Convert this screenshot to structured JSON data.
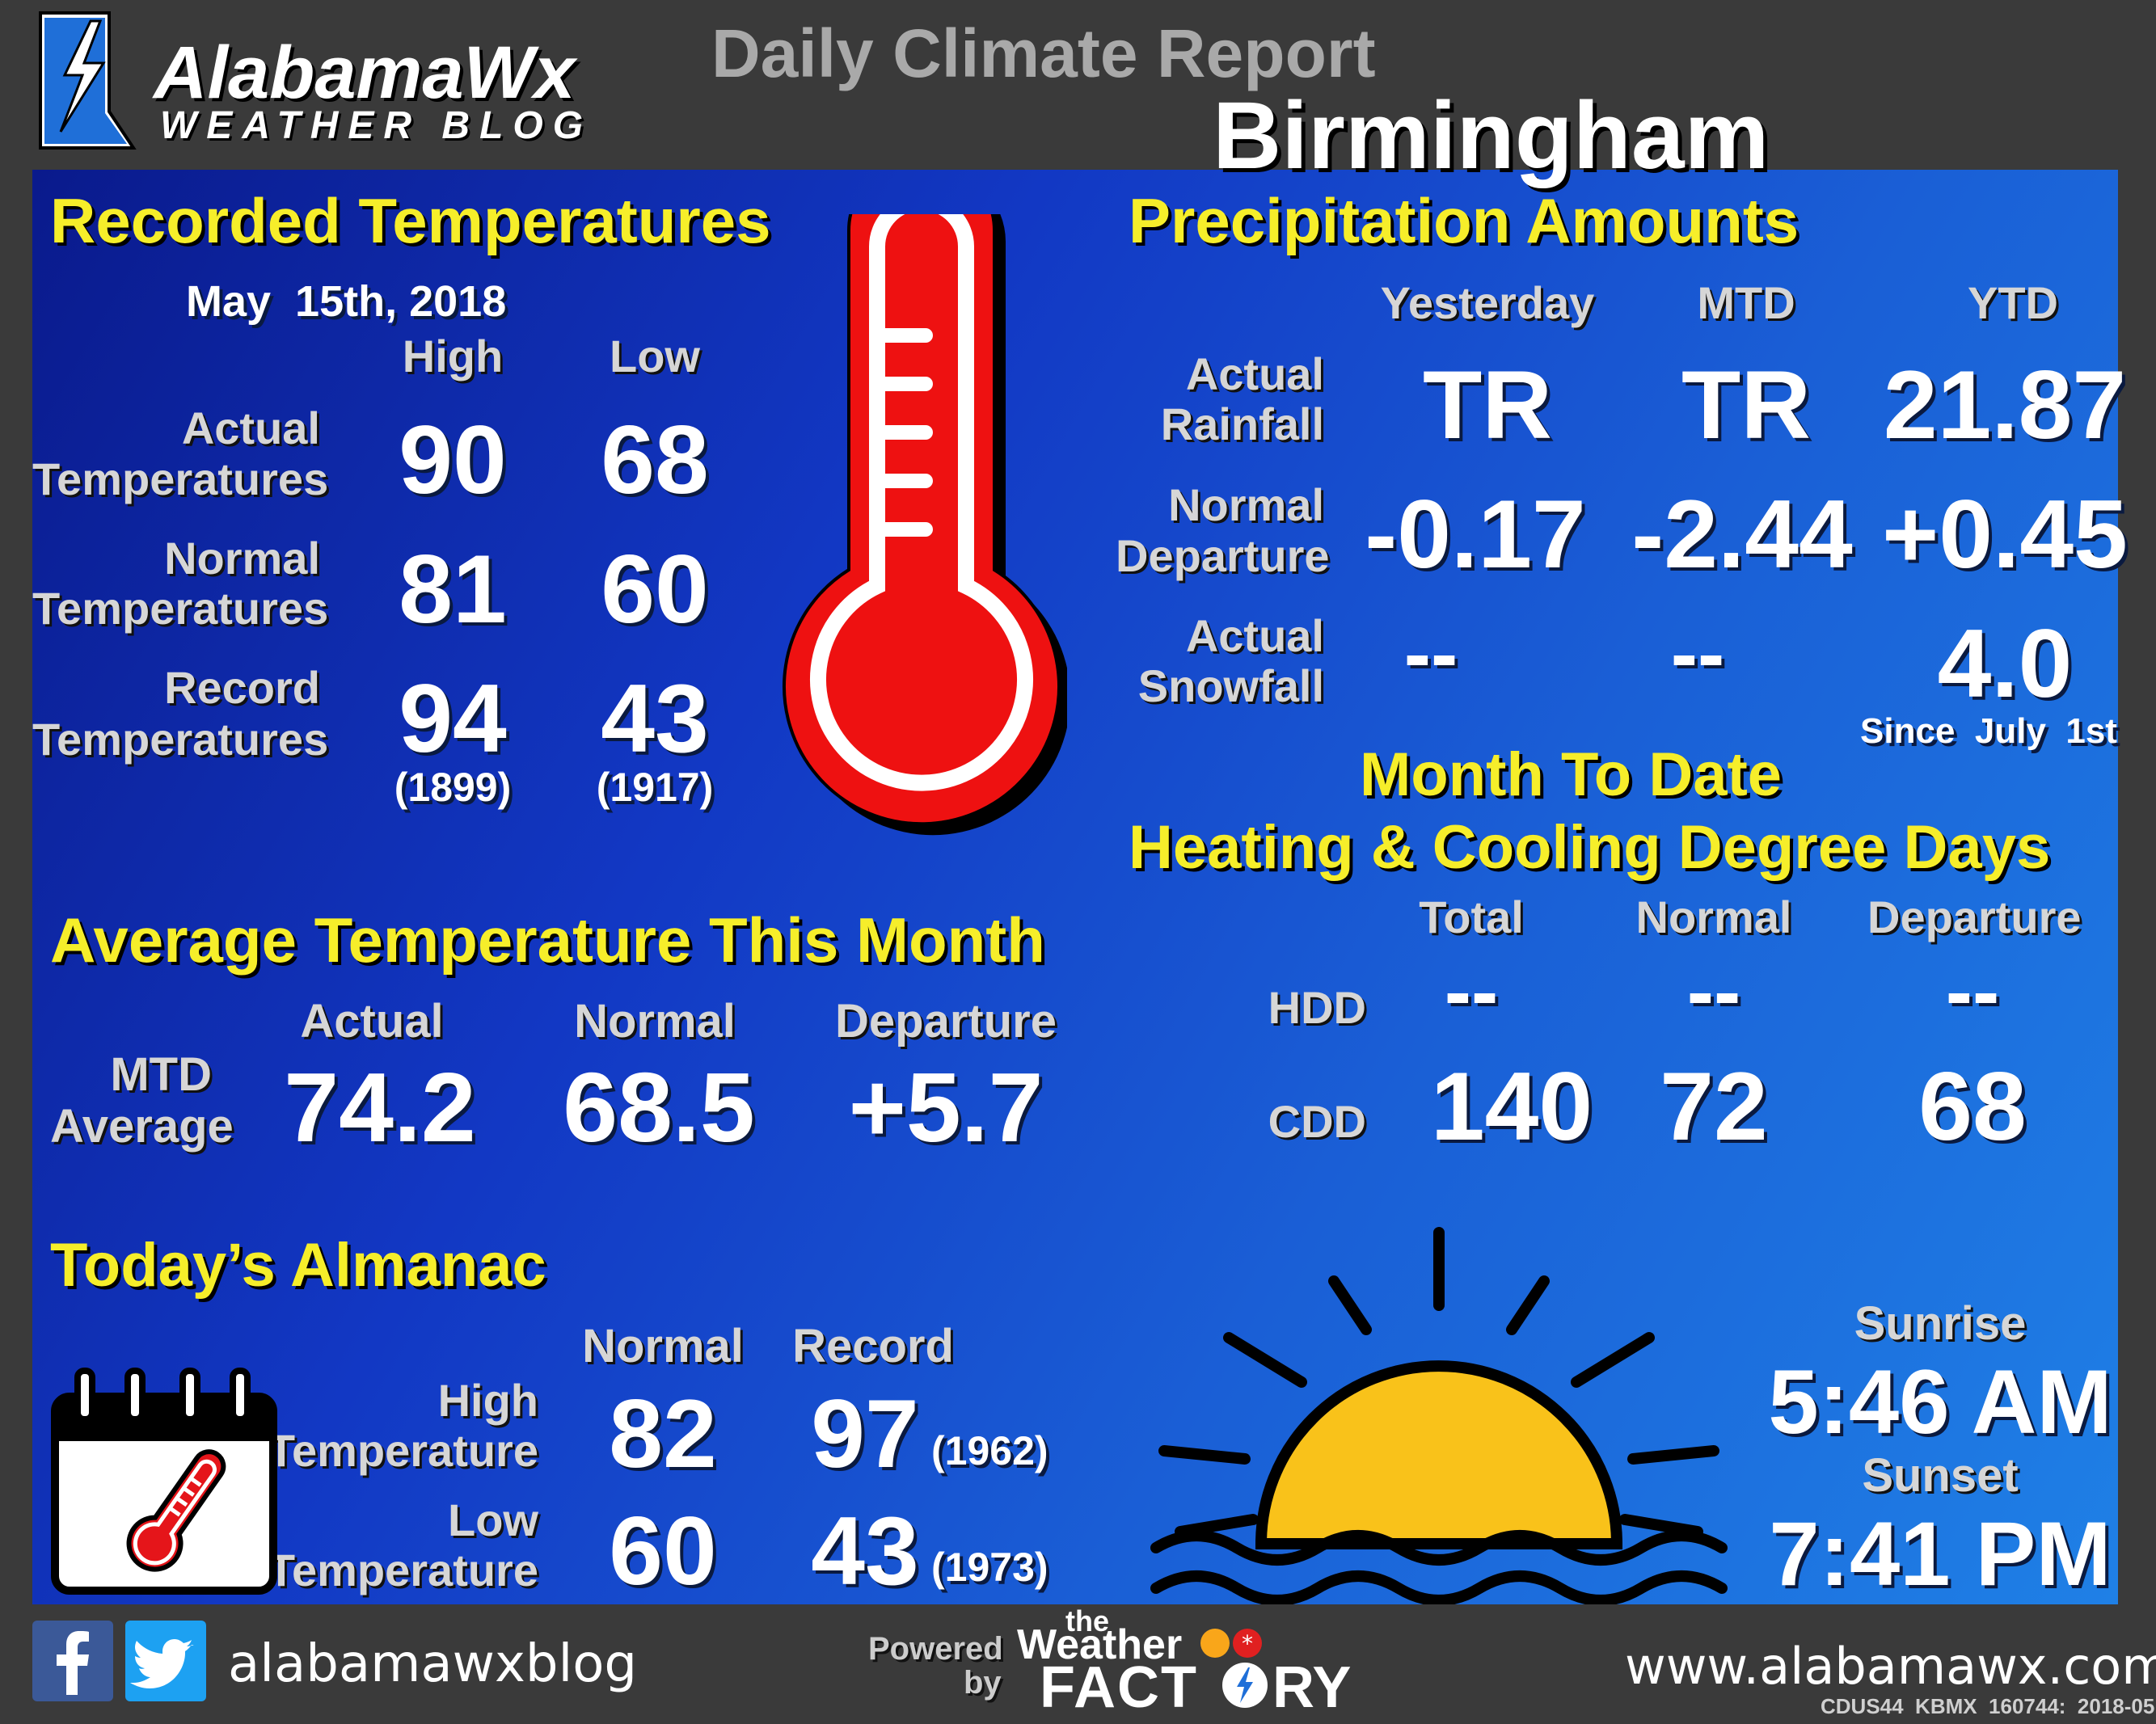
{
  "header": {
    "brand_line1": "AlabamaWx",
    "brand_line2": "WEATHER BLOG",
    "title": "Daily Climate Report",
    "city": "Birmingham"
  },
  "recorded": {
    "heading": "Recorded Temperatures",
    "date": "May  15th, 2018",
    "col_high": "High",
    "col_low": "Low",
    "rows": [
      {
        "label1": "Actual",
        "label2": "Temperatures",
        "high": "90",
        "low": "68"
      },
      {
        "label1": "Normal",
        "label2": "Temperatures",
        "high": "81",
        "low": "60"
      },
      {
        "label1": "Record",
        "label2": "Temperatures",
        "high": "94",
        "low": "43"
      }
    ],
    "record_high_year": "(1899)",
    "record_low_year": "(1917)"
  },
  "precip": {
    "heading": "Precipitation Amounts",
    "cols": [
      "Yesterday",
      "MTD",
      "YTD"
    ],
    "rows": [
      {
        "label1": "Actual",
        "label2": "Rainfall",
        "values": [
          "TR",
          "TR",
          "21.87"
        ]
      },
      {
        "label1": "Normal",
        "label2": "Departure",
        "values": [
          "-0.17",
          "-2.44",
          "+0.45"
        ]
      },
      {
        "label1": "Actual",
        "label2": "Snowfall",
        "values": [
          "--",
          "--",
          "4.0"
        ]
      }
    ],
    "snow_note": "Since  July  1st"
  },
  "average": {
    "heading": "Average Temperature This Month",
    "cols": [
      "Actual",
      "Normal",
      "Departure"
    ],
    "label1": "MTD",
    "label2": "Average",
    "values": [
      "74.2",
      "68.5",
      "+5.7"
    ]
  },
  "degree_days": {
    "heading1": "Month To Date",
    "heading2": "Heating & Cooling Degree Days",
    "cols": [
      "Total",
      "Normal",
      "Departure"
    ],
    "rows": [
      {
        "label": "HDD",
        "values": [
          "--",
          "--",
          "--"
        ]
      },
      {
        "label": "CDD",
        "values": [
          "140",
          "72",
          "68"
        ]
      }
    ]
  },
  "almanac": {
    "heading": "Today’s Almanac",
    "cols": [
      "Normal",
      "Record"
    ],
    "rows": [
      {
        "label1": "High",
        "label2": "Temperature",
        "normal": "82",
        "record": "97",
        "year": "(1962)"
      },
      {
        "label1": "Low",
        "label2": "Temperature",
        "normal": "60",
        "record": "43",
        "year": "(1973)"
      }
    ]
  },
  "sun": {
    "sunrise_label": "Sunrise",
    "sunrise": "5:46 AM",
    "sunset_label": "Sunset",
    "sunset": "7:41 PM"
  },
  "footer": {
    "social_handle": "alabamawxblog",
    "powered": "Powered",
    "by": "by",
    "the": "the",
    "weather": "Weather",
    "factory_a": "FACT",
    "factory_b": "RY",
    "website": "www.alabamawx.com",
    "product_id": "CDUS44  KBMX  160744:  2018-05"
  },
  "colors": {
    "heading_yellow": "#f6ee2a",
    "thermometer_red": "#ee1111",
    "sun_yellow": "#f9c21a",
    "panel_blue": "#1a5fd6"
  },
  "icons": [
    "thermometer-icon",
    "calendar-thermometer-icon",
    "sun-icon",
    "facebook-icon",
    "twitter-icon",
    "lightning-logo-icon"
  ]
}
